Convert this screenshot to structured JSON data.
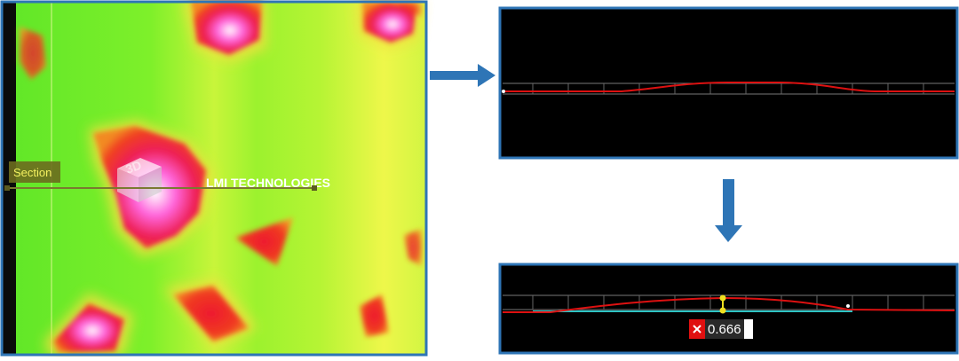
{
  "heightmap": {
    "section_label": "Section",
    "logo_3d": "3D",
    "logo_text": "LMI TECHNOLOGIES"
  },
  "measurement": {
    "value_text": "0.666"
  }
}
